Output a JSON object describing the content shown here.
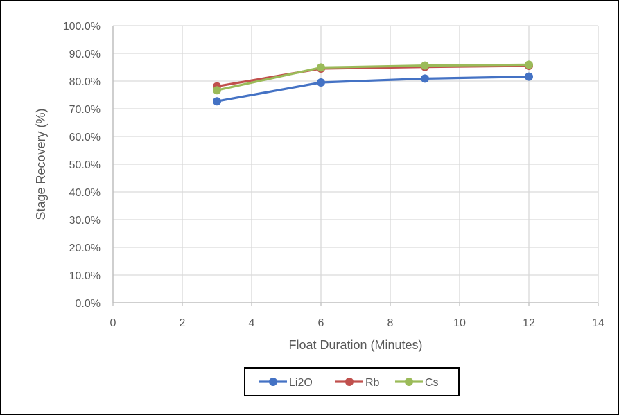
{
  "chart_data": {
    "type": "line",
    "title": "",
    "xlabel": "Float Duration (Minutes)",
    "ylabel": "Stage Recovery (%)",
    "xlim": [
      0,
      14
    ],
    "ylim": [
      0,
      1
    ],
    "x_ticks": [
      0,
      2,
      4,
      6,
      8,
      10,
      12,
      14
    ],
    "y_ticks": [
      0.0,
      0.1,
      0.2,
      0.3,
      0.4,
      0.5,
      0.6,
      0.7,
      0.8,
      0.9,
      1.0
    ],
    "x_tick_labels": [
      "0",
      "2",
      "4",
      "6",
      "8",
      "10",
      "12",
      "14"
    ],
    "y_tick_labels": [
      "0.0%",
      "10.0%",
      "20.0%",
      "30.0%",
      "40.0%",
      "50.0%",
      "60.0%",
      "70.0%",
      "80.0%",
      "90.0%",
      "100.0%"
    ],
    "grid": true,
    "legend_position": "bottom",
    "x": [
      3,
      6,
      9,
      12
    ],
    "series": [
      {
        "name": "Li2O",
        "color": "#4472C4",
        "values": [
          0.727,
          0.795,
          0.809,
          0.816
        ]
      },
      {
        "name": "Rb",
        "color": "#C0504D",
        "values": [
          0.781,
          0.845,
          0.851,
          0.855
        ]
      },
      {
        "name": "Cs",
        "color": "#9BBB59",
        "values": [
          0.767,
          0.849,
          0.856,
          0.859
        ]
      }
    ]
  }
}
